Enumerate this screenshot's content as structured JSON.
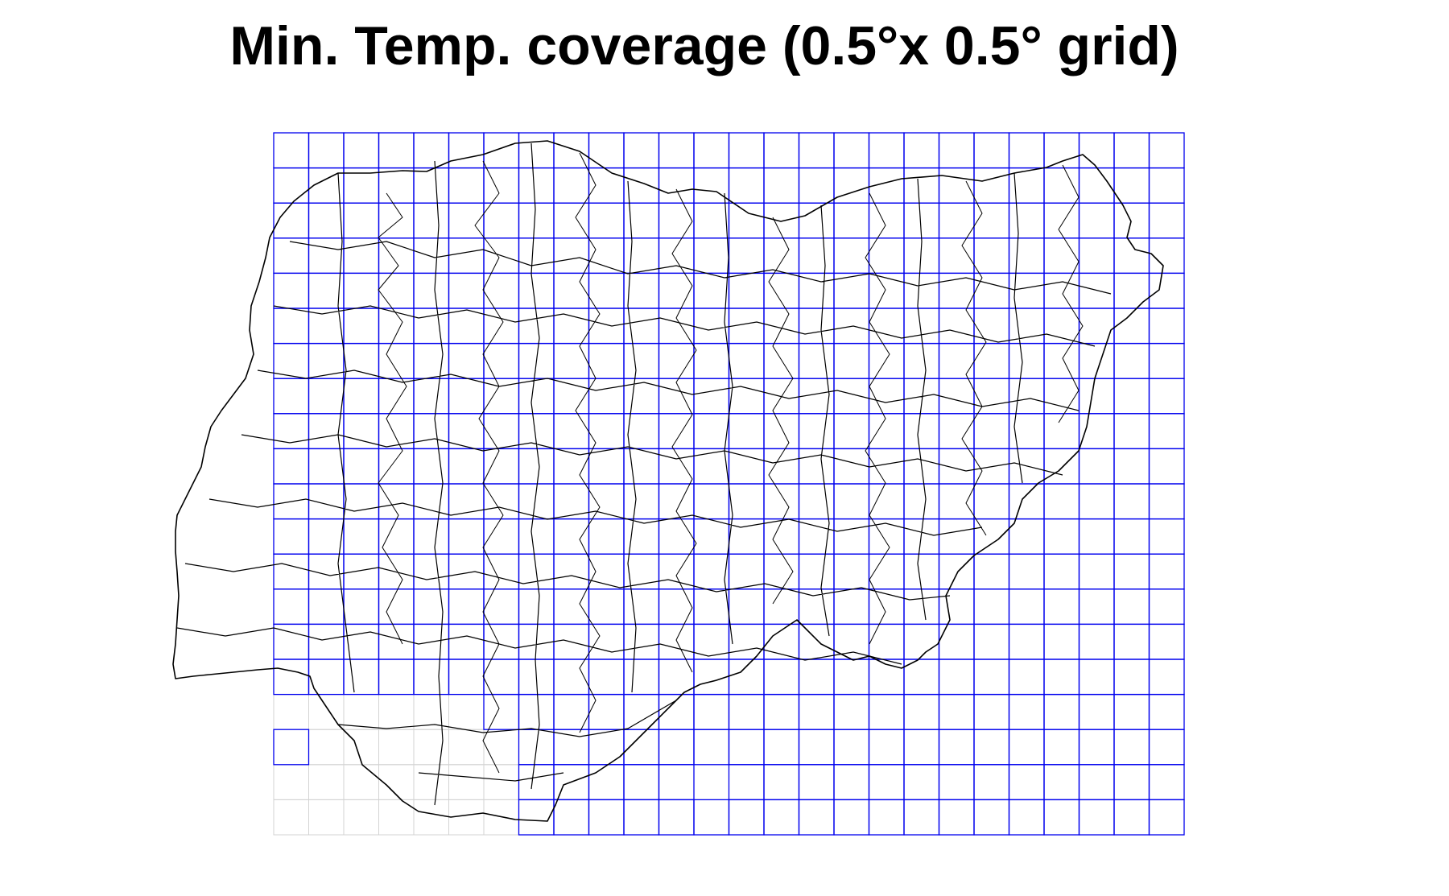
{
  "title": "Min. Temp. coverage (0.5°x 0.5° grid)",
  "grid": {
    "cols": 26,
    "rows": 20,
    "cell_degrees": 0.5,
    "covered_color": "#0000ee",
    "uncovered_color": "#d3d3d3",
    "uncovered_cells": [
      [
        16,
        0
      ],
      [
        16,
        1
      ],
      [
        16,
        2
      ],
      [
        16,
        3
      ],
      [
        16,
        4
      ],
      [
        16,
        5
      ],
      [
        17,
        0
      ],
      [
        17,
        1
      ],
      [
        17,
        2
      ],
      [
        17,
        3
      ],
      [
        17,
        4
      ],
      [
        17,
        5
      ],
      [
        17,
        6
      ],
      [
        18,
        0
      ],
      [
        18,
        1
      ],
      [
        18,
        2
      ],
      [
        18,
        3
      ],
      [
        18,
        4
      ],
      [
        18,
        5
      ],
      [
        18,
        6
      ],
      [
        18,
        7
      ],
      [
        18,
        8
      ],
      [
        18,
        9
      ],
      [
        18,
        10
      ],
      [
        18,
        11
      ],
      [
        18,
        12
      ],
      [
        19,
        0
      ],
      [
        19,
        1
      ],
      [
        19,
        2
      ],
      [
        19,
        3
      ],
      [
        19,
        4
      ],
      [
        19,
        5
      ],
      [
        19,
        6
      ],
      [
        19,
        7
      ],
      [
        19,
        8
      ],
      [
        19,
        9
      ],
      [
        19,
        10
      ],
      [
        19,
        11
      ],
      [
        19,
        12
      ]
    ],
    "covered_override_cells": [
      [
        17,
        0
      ],
      [
        16,
        6
      ],
      [
        16,
        7
      ],
      [
        16,
        8
      ],
      [
        17,
        7
      ],
      [
        17,
        8
      ],
      [
        17,
        9
      ],
      [
        17,
        10
      ],
      [
        17,
        11
      ],
      [
        17,
        12
      ],
      [
        18,
        7
      ],
      [
        18,
        8
      ],
      [
        18,
        9
      ],
      [
        18,
        10
      ],
      [
        18,
        11
      ],
      [
        19,
        7
      ],
      [
        19,
        8
      ],
      [
        19,
        9
      ],
      [
        19,
        10
      ],
      [
        19,
        11
      ],
      [
        19,
        12
      ],
      [
        16,
        9
      ],
      [
        16,
        10
      ],
      [
        16,
        11
      ],
      [
        16,
        12
      ]
    ]
  },
  "colors": {
    "outline": "#000000",
    "background": "#ffffff"
  }
}
